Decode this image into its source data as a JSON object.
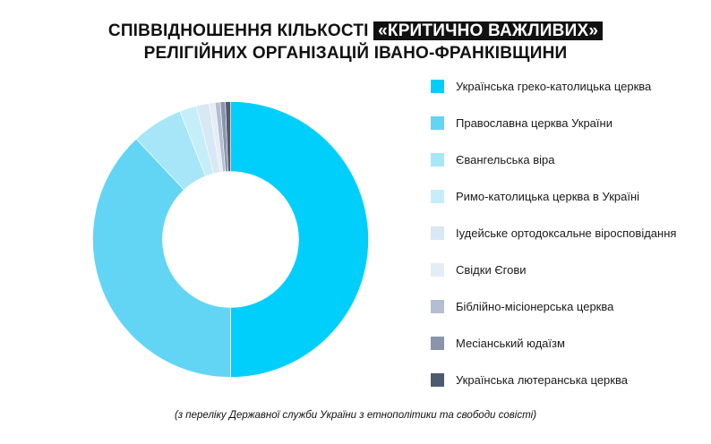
{
  "title": {
    "line1_prefix": "СПІВВІДНОШЕННЯ КІЛЬКОСТІ ",
    "line1_highlight": "«КРИТИЧНО ВАЖЛИВИХ»",
    "line2": "РЕЛІГІЙНИХ ОРГАНІЗАЦІЙ ІВАНО-ФРАНКІВЩИНИ"
  },
  "source_note": "(з переліку Державної служби України з етнополітики та свободи совісті)",
  "chart_data": {
    "type": "pie",
    "variant": "donut",
    "legend_position": "right",
    "series": [
      {
        "name": "Українська греко-католицька церква",
        "value": 50.0,
        "color": "#00cffc"
      },
      {
        "name": "Православна церква України",
        "value": 38.0,
        "color": "#62d5f5"
      },
      {
        "name": "Євангельська віра",
        "value": 6.0,
        "color": "#a6e6f8"
      },
      {
        "name": "Римо-католицька церква в Україні",
        "value": 2.0,
        "color": "#c6eefa"
      },
      {
        "name": "Іудейське ортодоксальне віросповідання",
        "value": 1.5,
        "color": "#d8e8f4"
      },
      {
        "name": "Свідки Єгови",
        "value": 0.7,
        "color": "#e4ecf5"
      },
      {
        "name": "Біблійно-місіонерська церква",
        "value": 0.6,
        "color": "#b4bed1"
      },
      {
        "name": "Месіанський юдаїзм",
        "value": 0.6,
        "color": "#8a94ac"
      },
      {
        "name": "Українська лютеранська церква",
        "value": 0.6,
        "color": "#4d5a6f"
      }
    ]
  }
}
